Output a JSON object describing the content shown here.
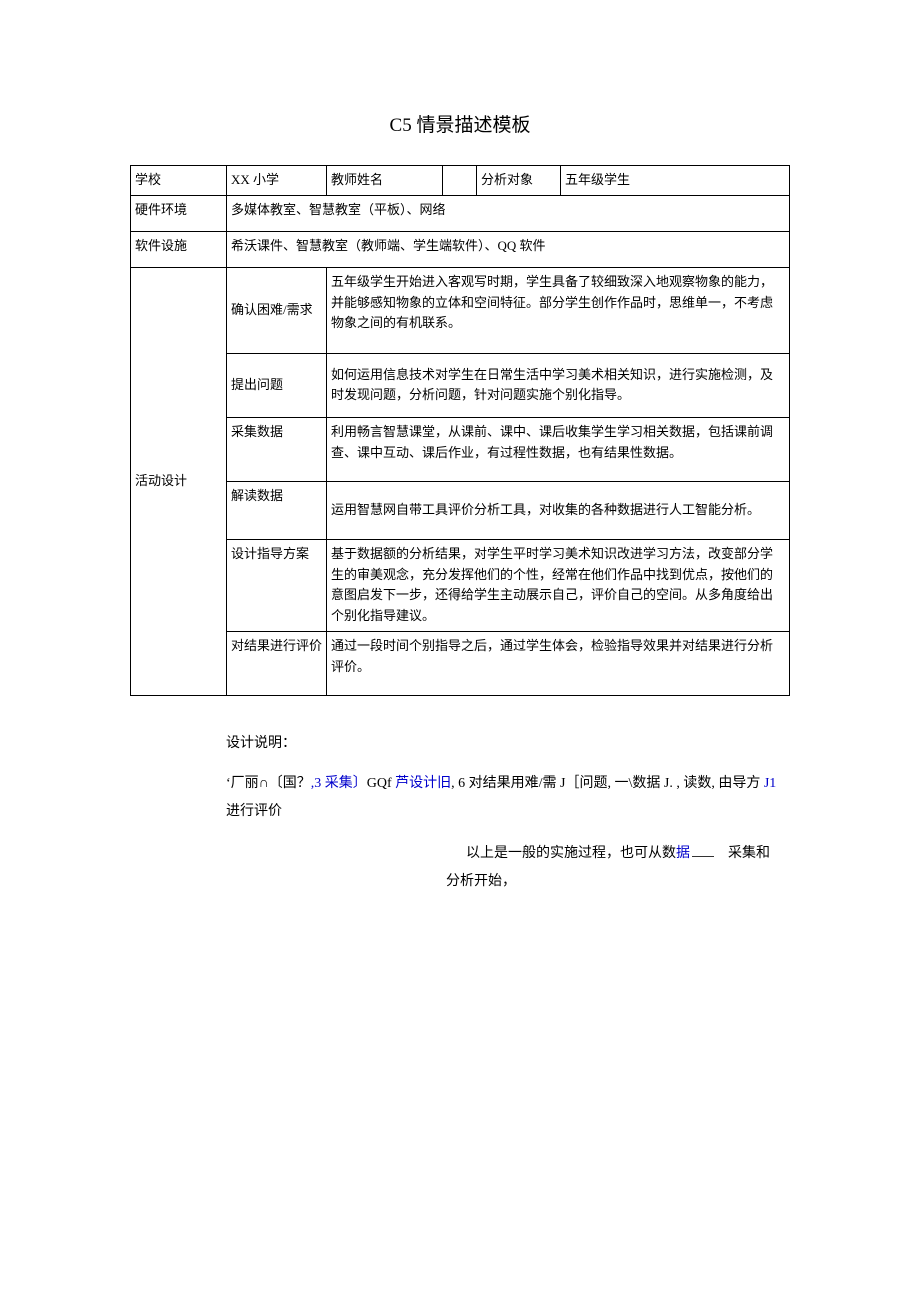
{
  "page": {
    "title": "C5 情景描述模板",
    "background_color": "#ffffff",
    "text_color": "#000000",
    "body_fontsize": 13,
    "title_fontsize": 19,
    "accent_color": "#0000cc",
    "border_color": "#000000",
    "font_family": "SimSun"
  },
  "header_row": {
    "school_label": "学校",
    "school_value": "XX 小学",
    "teacher_label": "教师姓名",
    "teacher_value": "",
    "subject_label": "分析对象",
    "subject_value": "五年级学生"
  },
  "hardware": {
    "label": "硬件环境",
    "value": "多媒体教室、智慧教室（平板）、网络"
  },
  "software": {
    "label": "软件设施",
    "value": "希沃课件、智慧教室（教师端、学生端软件）、QQ 软件"
  },
  "activity": {
    "section_label": "活动设计",
    "rows": [
      {
        "sub_label": "确认困难/需求",
        "content": "五年级学生开始进入客观写时期，学生具备了较细致深入地观察物象的能力，并能够感知物象的立体和空间特征。部分学生创作作品时，思维单一，不考虑物象之间的有机联系。"
      },
      {
        "sub_label": "提出问题",
        "content": "如何运用信息技术对学生在日常生活中学习美术相关知识，进行实施检测，及时发现问题，分析问题，针对问题实施个别化指导。"
      },
      {
        "sub_label": "采集数据",
        "content": "利用畅言智慧课堂，从课前、课中、课后收集学生学习相关数据，包括课前调查、课中互动、课后作业，有过程性数据，也有结果性数据。"
      },
      {
        "sub_label": "解读数据",
        "content": "运用智慧网自带工具评价分析工具，对收集的各种数据进行人工智能分析。"
      },
      {
        "sub_label": "设计指导方案",
        "content": "基于数据额的分析结果，对学生平时学习美术知识改进学习方法，改变部分学生的审美观念，充分发挥他们的个性，经常在他们作品中找到优点，按他们的意图启发下一步，还得给学生主动展示自己，评价自己的空间。从多角度给出个别化指导建议。"
      },
      {
        "sub_label": "对结果进行评价",
        "content": "通过一段时间个别指导之后，通过学生体会，检验指导效果并对结果进行分析评价。"
      }
    ]
  },
  "design_notes": {
    "label": "设计说明：",
    "line1_parts": {
      "p1": "‘厂丽∩〔国？",
      "p2": ",3 采集〕",
      "p3": "GQf",
      "p4": " 芦设计旧",
      "p5": ", 6 对结果用难/需 J［问题, 一\\数据 J. , 读数, 由导方 ",
      "p6": "J1",
      "p7": " 进行评价"
    },
    "line2_a": "以上是一般的实施过程，也可从数",
    "line2_link": "据",
    "line2_b": "　采集和",
    "line3": "分析开始，"
  }
}
